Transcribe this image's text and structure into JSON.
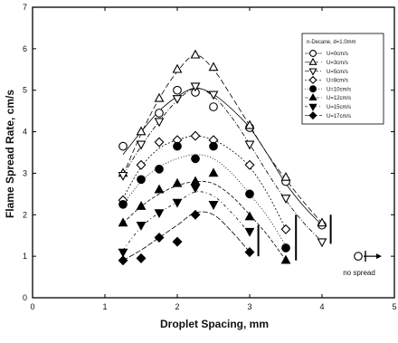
{
  "chart_data": {
    "type": "scatter",
    "title": "",
    "xlabel": "Droplet Spacing, mm",
    "ylabel": "Flame Spread Rate, cm/s",
    "xlim": [
      0,
      5
    ],
    "ylim": [
      0,
      7
    ],
    "xticks": [
      "0",
      "1",
      "2",
      "3",
      "4",
      "5"
    ],
    "yticks": [
      "0",
      "1",
      "2",
      "3",
      "4",
      "5",
      "6",
      "7"
    ],
    "grid": false,
    "legend_position": "top-right",
    "legend_title": "n-Decane, d=1.0mm",
    "annotations": [
      "no spread"
    ],
    "series": [
      {
        "name": "U=0cm/s",
        "marker": "circle-open",
        "fill": "none",
        "points": [
          [
            1.25,
            3.65
          ],
          [
            1.75,
            4.45
          ],
          [
            2.0,
            5.0
          ],
          [
            2.25,
            4.95
          ],
          [
            2.5,
            4.6
          ],
          [
            3.0,
            4.1
          ],
          [
            3.5,
            2.8
          ],
          [
            4.0,
            1.75
          ],
          [
            4.5,
            1.0
          ]
        ]
      },
      {
        "name": "U=3cm/s",
        "marker": "triangle-up-open",
        "fill": "none",
        "points": [
          [
            1.25,
            3.0
          ],
          [
            1.5,
            4.0
          ],
          [
            1.75,
            4.8
          ],
          [
            2.0,
            5.5
          ],
          [
            2.25,
            5.85
          ],
          [
            2.5,
            5.55
          ],
          [
            3.0,
            4.15
          ],
          [
            3.5,
            2.9
          ],
          [
            4.0,
            1.8
          ]
        ]
      },
      {
        "name": "U=5cm/s",
        "marker": "triangle-down-open",
        "fill": "none",
        "points": [
          [
            1.25,
            2.95
          ],
          [
            1.5,
            3.7
          ],
          [
            1.75,
            4.25
          ],
          [
            2.0,
            4.8
          ],
          [
            2.25,
            5.1
          ],
          [
            2.5,
            4.9
          ],
          [
            3.0,
            3.7
          ],
          [
            3.5,
            2.4
          ],
          [
            4.0,
            1.35
          ]
        ]
      },
      {
        "name": "U=8cm/s",
        "marker": "diamond-open",
        "fill": "none",
        "points": [
          [
            1.25,
            2.35
          ],
          [
            1.5,
            3.2
          ],
          [
            1.75,
            3.75
          ],
          [
            2.0,
            3.8
          ],
          [
            2.25,
            3.9
          ],
          [
            2.5,
            3.8
          ],
          [
            3.0,
            3.2
          ],
          [
            3.5,
            1.65
          ]
        ]
      },
      {
        "name": "U=10cm/s",
        "marker": "circle",
        "fill": "#000",
        "points": [
          [
            1.25,
            2.25
          ],
          [
            1.5,
            2.85
          ],
          [
            1.75,
            3.1
          ],
          [
            2.0,
            3.65
          ],
          [
            2.25,
            3.35
          ],
          [
            2.5,
            3.65
          ],
          [
            3.0,
            2.5
          ],
          [
            3.5,
            1.2
          ]
        ]
      },
      {
        "name": "U=12cm/s",
        "marker": "triangle-up",
        "fill": "#000",
        "points": [
          [
            1.25,
            1.8
          ],
          [
            1.5,
            2.2
          ],
          [
            1.75,
            2.6
          ],
          [
            2.0,
            2.75
          ],
          [
            2.25,
            2.8
          ],
          [
            2.5,
            3.0
          ],
          [
            3.0,
            1.95
          ],
          [
            3.5,
            0.9
          ]
        ]
      },
      {
        "name": "U=15cm/s",
        "marker": "triangle-down",
        "fill": "#000",
        "points": [
          [
            1.25,
            1.1
          ],
          [
            1.5,
            1.75
          ],
          [
            1.75,
            2.05
          ],
          [
            2.0,
            2.3
          ],
          [
            2.25,
            2.65
          ],
          [
            2.5,
            2.25
          ],
          [
            3.0,
            1.6
          ]
        ]
      },
      {
        "name": "U=17cm/s",
        "marker": "diamond",
        "fill": "#000",
        "points": [
          [
            1.25,
            0.9
          ],
          [
            1.5,
            0.95
          ],
          [
            1.75,
            1.45
          ],
          [
            2.0,
            1.35
          ],
          [
            2.25,
            2.0
          ],
          [
            3.0,
            1.1
          ]
        ]
      }
    ],
    "fit_curves": [
      {
        "series": "U=0cm/s",
        "points": [
          [
            1.25,
            3.45
          ],
          [
            1.5,
            4.0
          ],
          [
            1.75,
            4.5
          ],
          [
            2.0,
            4.85
          ],
          [
            2.25,
            5.05
          ],
          [
            2.5,
            4.9
          ],
          [
            2.75,
            4.55
          ],
          [
            3.0,
            4.1
          ],
          [
            3.25,
            3.45
          ],
          [
            3.5,
            2.75
          ],
          [
            3.75,
            2.2
          ],
          [
            4.0,
            1.75
          ]
        ]
      },
      {
        "series": "U=3cm/s",
        "points": [
          [
            1.25,
            2.95
          ],
          [
            1.5,
            3.95
          ],
          [
            1.75,
            4.8
          ],
          [
            2.0,
            5.45
          ],
          [
            2.25,
            5.85
          ],
          [
            2.5,
            5.5
          ],
          [
            2.75,
            4.85
          ],
          [
            3.0,
            4.15
          ],
          [
            3.25,
            3.45
          ],
          [
            3.5,
            2.85
          ],
          [
            3.75,
            2.3
          ],
          [
            4.0,
            1.8
          ]
        ]
      },
      {
        "series": "U=5cm/s",
        "points": [
          [
            1.25,
            2.95
          ],
          [
            1.5,
            3.65
          ],
          [
            1.75,
            4.25
          ],
          [
            2.0,
            4.75
          ],
          [
            2.25,
            5.05
          ],
          [
            2.5,
            4.85
          ],
          [
            2.75,
            4.35
          ],
          [
            3.0,
            3.7
          ],
          [
            3.25,
            3.0
          ],
          [
            3.5,
            2.35
          ],
          [
            3.75,
            1.8
          ],
          [
            4.0,
            1.35
          ]
        ]
      },
      {
        "series": "U=8cm/s",
        "points": [
          [
            1.25,
            2.4
          ],
          [
            1.5,
            3.15
          ],
          [
            1.75,
            3.6
          ],
          [
            2.0,
            3.8
          ],
          [
            2.25,
            3.9
          ],
          [
            2.5,
            3.8
          ],
          [
            2.75,
            3.55
          ],
          [
            3.0,
            3.15
          ],
          [
            3.25,
            2.5
          ],
          [
            3.5,
            1.65
          ]
        ]
      },
      {
        "series": "U=10cm/s",
        "points": [
          [
            1.25,
            2.25
          ],
          [
            1.5,
            2.8
          ],
          [
            1.75,
            3.15
          ],
          [
            2.0,
            3.35
          ],
          [
            2.25,
            3.45
          ],
          [
            2.5,
            3.35
          ],
          [
            2.75,
            3.0
          ],
          [
            3.0,
            2.5
          ],
          [
            3.25,
            1.95
          ],
          [
            3.5,
            1.25
          ]
        ]
      },
      {
        "series": "U=12cm/s",
        "points": [
          [
            1.25,
            1.8
          ],
          [
            1.5,
            2.2
          ],
          [
            1.75,
            2.5
          ],
          [
            2.0,
            2.7
          ],
          [
            2.25,
            2.8
          ],
          [
            2.5,
            2.75
          ],
          [
            2.75,
            2.45
          ],
          [
            3.0,
            2.0
          ],
          [
            3.25,
            1.5
          ],
          [
            3.5,
            0.9
          ]
        ]
      },
      {
        "series": "U=15cm/s",
        "points": [
          [
            1.25,
            1.15
          ],
          [
            1.5,
            1.7
          ],
          [
            1.75,
            2.05
          ],
          [
            2.0,
            2.3
          ],
          [
            2.25,
            2.55
          ],
          [
            2.5,
            2.45
          ],
          [
            2.75,
            2.05
          ],
          [
            3.0,
            1.55
          ]
        ]
      },
      {
        "series": "U=17cm/s",
        "points": [
          [
            1.25,
            0.9
          ],
          [
            1.5,
            1.15
          ],
          [
            1.75,
            1.45
          ],
          [
            2.0,
            1.75
          ],
          [
            2.25,
            2.05
          ],
          [
            2.5,
            2.0
          ],
          [
            2.75,
            1.6
          ],
          [
            3.0,
            1.1
          ]
        ]
      }
    ],
    "limit_markers": [
      {
        "x": 3.12,
        "y_from": 1.0,
        "y_to": 1.75
      },
      {
        "x": 3.64,
        "y_from": 0.9,
        "y_to": 2.0
      },
      {
        "x": 4.12,
        "y_from": 1.3,
        "y_to": 2.0
      }
    ],
    "no_spread_point": {
      "x": 4.5,
      "y": 1.0
    }
  }
}
